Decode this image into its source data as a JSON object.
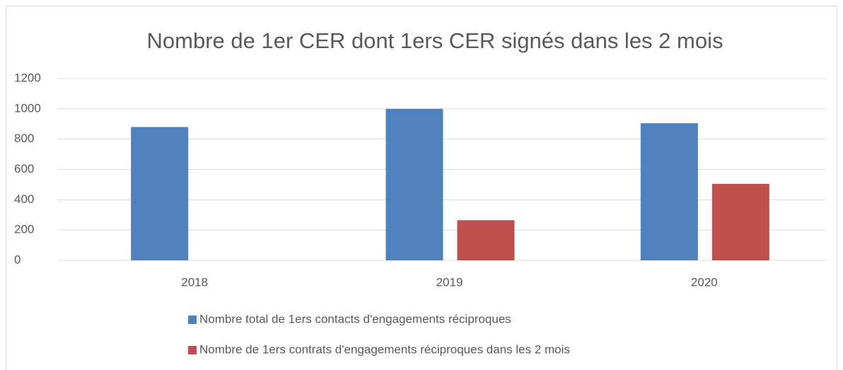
{
  "chart_data": {
    "type": "bar",
    "title": "Nombre de 1er CER dont 1ers CER signés dans les 2 mois",
    "categories": [
      "2018",
      "2019",
      "2020"
    ],
    "series": [
      {
        "name": "Nombre total de 1ers contacts d'engagements réciproques",
        "color": "#4f81bd",
        "values": [
          880,
          1000,
          905
        ]
      },
      {
        "name": "Nombre de 1ers contrats d'engagements réciproques dans les 2 mois",
        "color": "#c0504d",
        "values": [
          0,
          265,
          505
        ]
      }
    ],
    "ylim": [
      0,
      1200
    ],
    "yticks": [
      0,
      200,
      400,
      600,
      800,
      1000,
      1200
    ],
    "grid": true,
    "legend": "bottom"
  }
}
